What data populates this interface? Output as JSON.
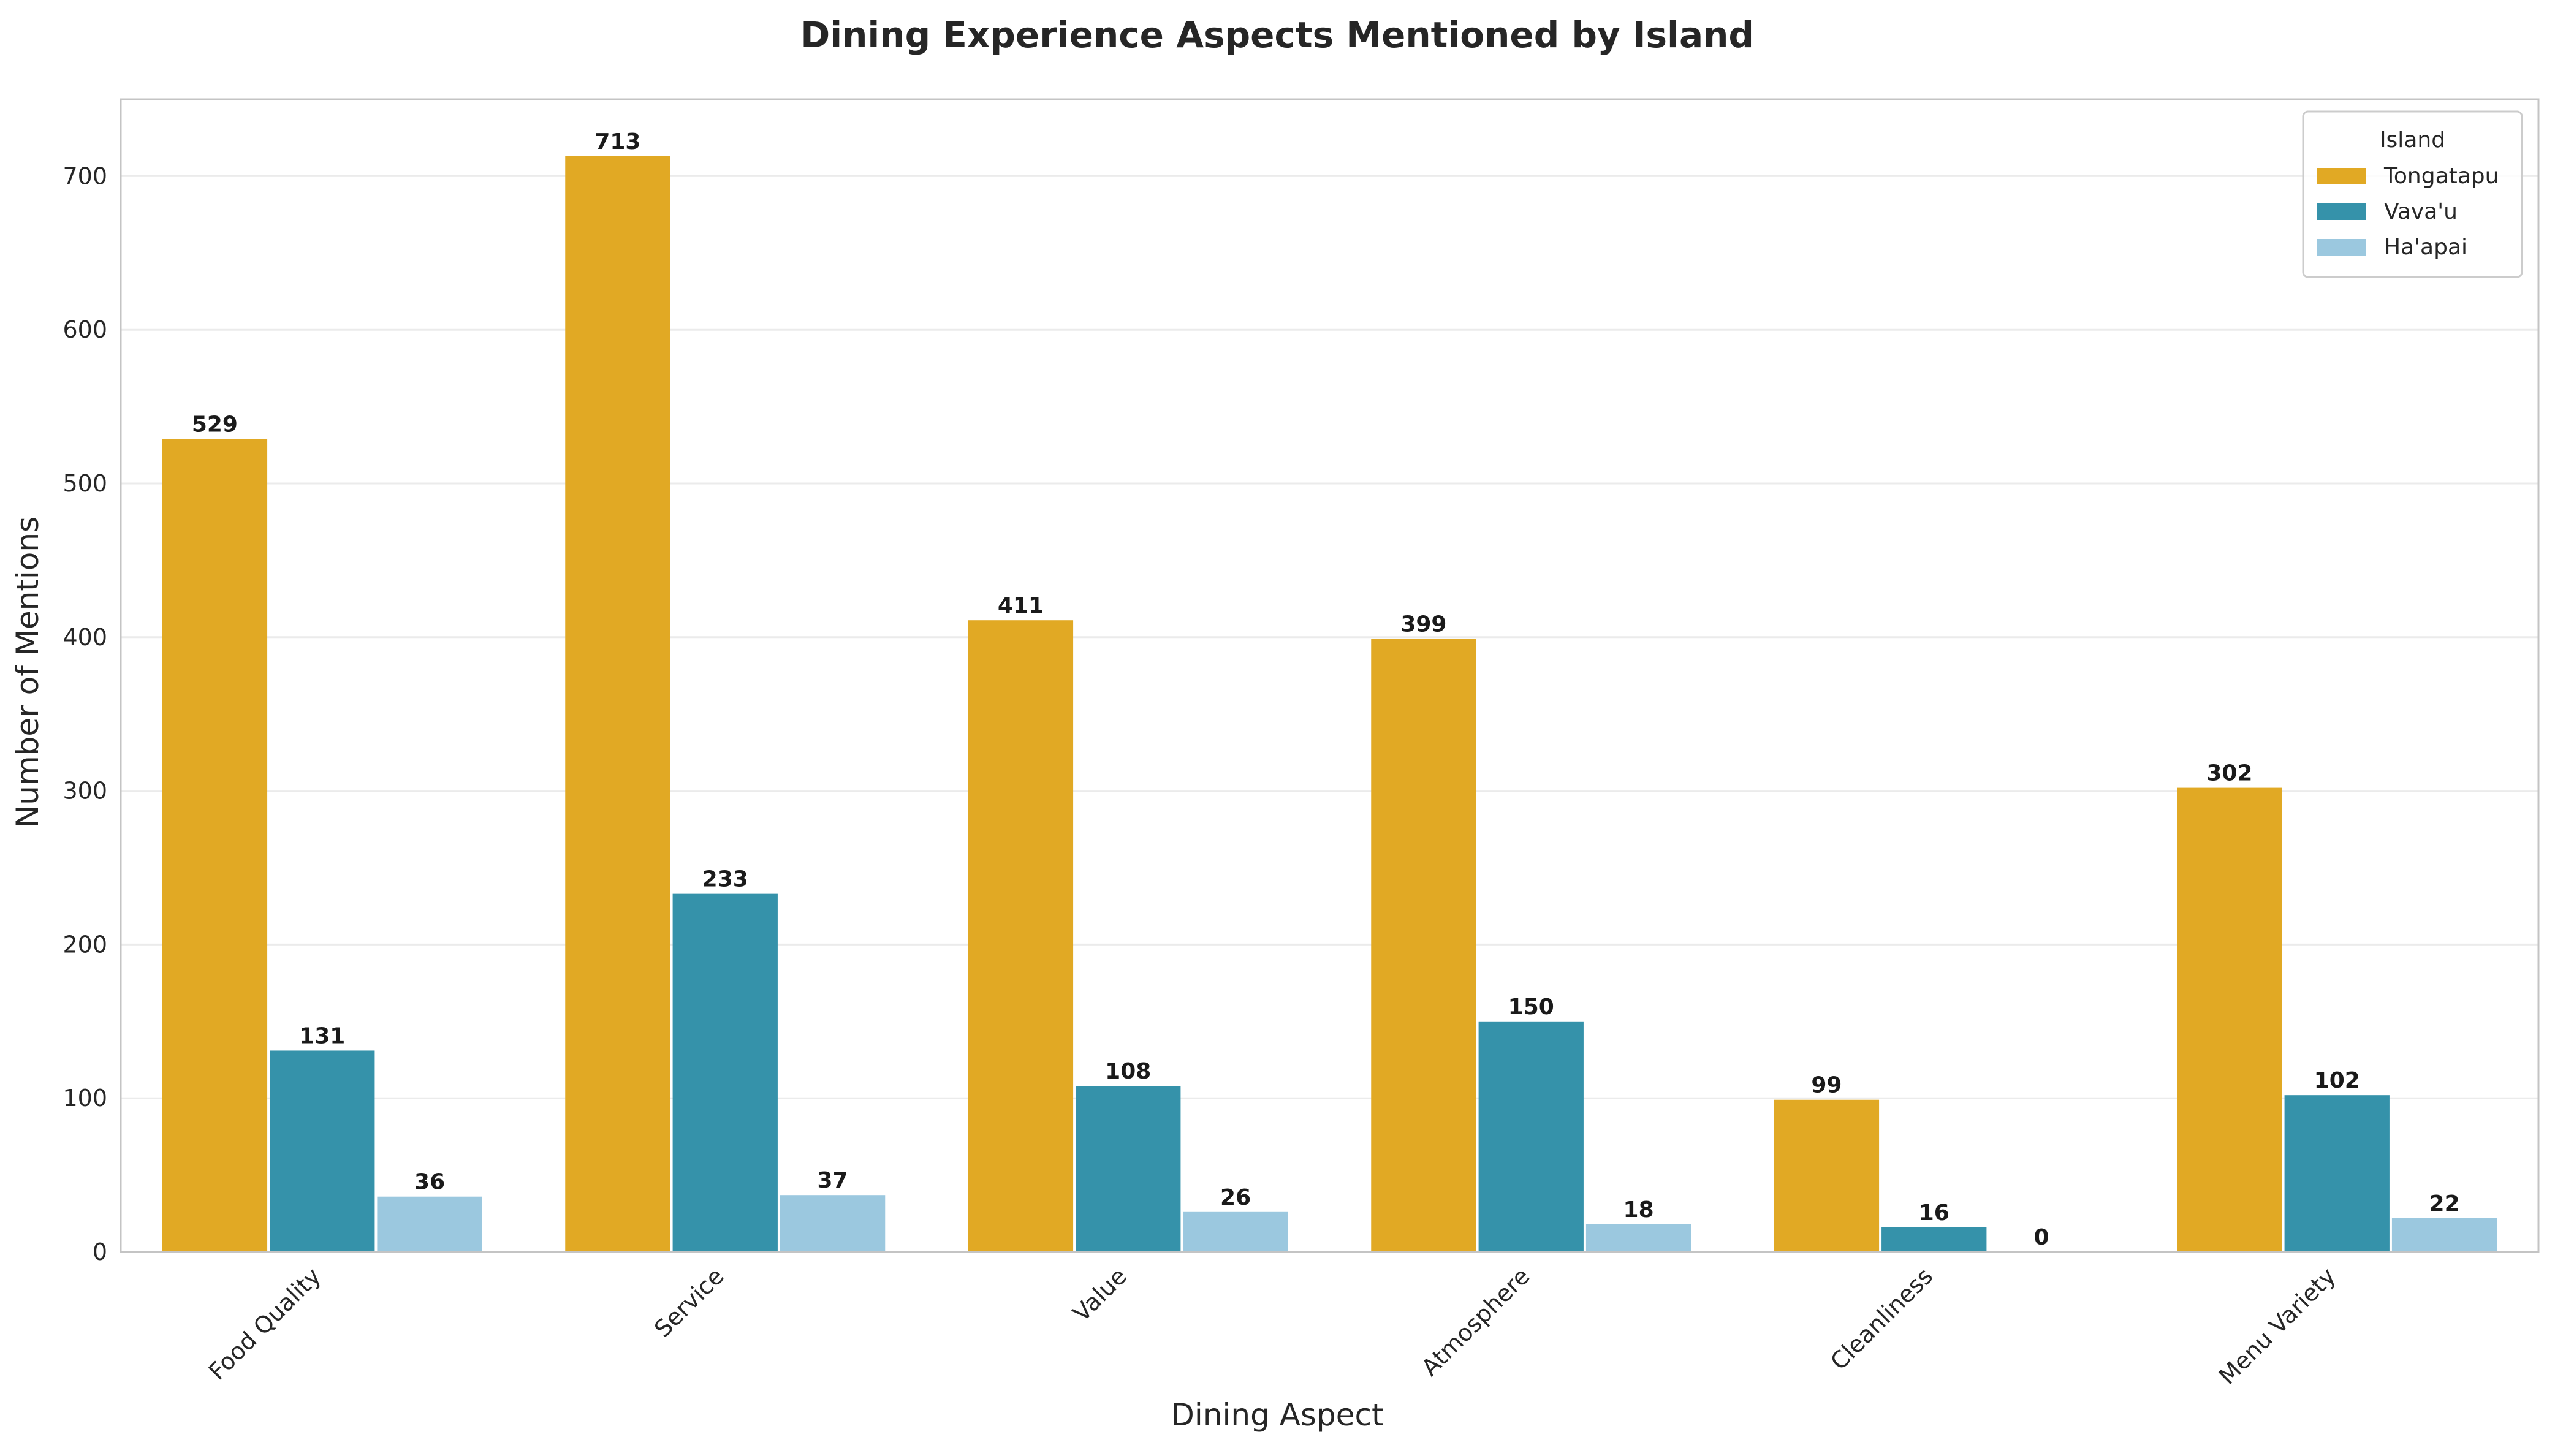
{
  "chart_data": {
    "type": "bar",
    "title": "Dining Experience Aspects Mentioned by Island",
    "xlabel": "Dining Aspect",
    "ylabel": "Number of Mentions",
    "categories": [
      "Food Quality",
      "Service",
      "Value",
      "Atmosphere",
      "Cleanliness",
      "Menu Variety"
    ],
    "series": [
      {
        "name": "Tongatapu",
        "color": "#E1A924",
        "values": [
          529,
          713,
          411,
          399,
          99,
          302
        ]
      },
      {
        "name": "Vava'u",
        "color": "#3592AA",
        "values": [
          131,
          233,
          108,
          150,
          16,
          102
        ]
      },
      {
        "name": "Ha'apai",
        "color": "#9BC8DF",
        "values": [
          36,
          37,
          26,
          18,
          0,
          22
        ]
      }
    ],
    "ylim": [
      0,
      750
    ],
    "yticks": [
      0,
      100,
      200,
      300,
      400,
      500,
      600,
      700
    ],
    "grid": true,
    "legend": {
      "title": "Island",
      "placement": "top-right"
    }
  }
}
